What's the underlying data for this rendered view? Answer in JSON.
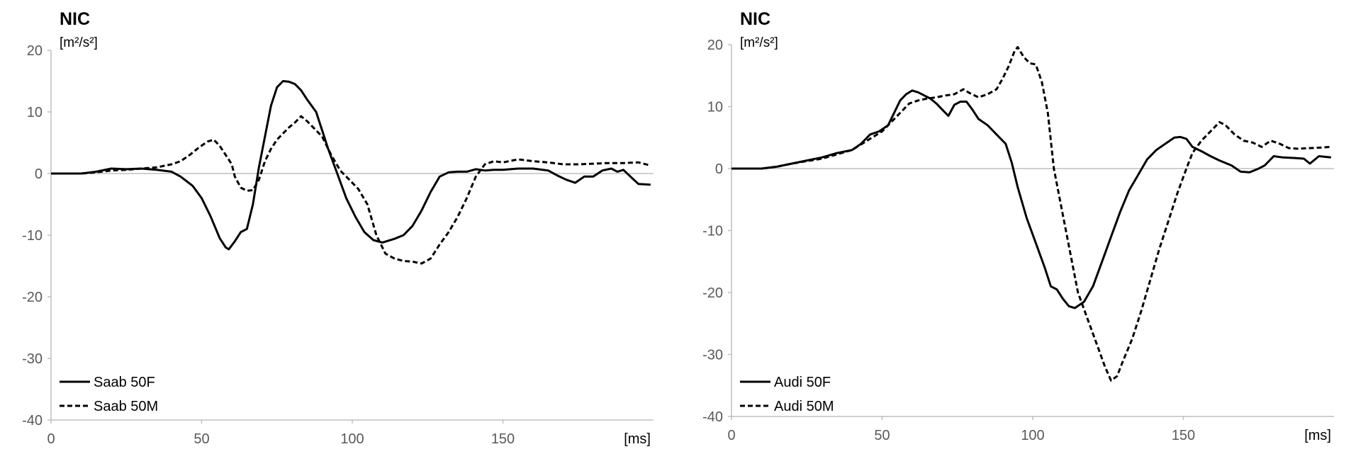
{
  "chart_data": [
    {
      "type": "line",
      "title": "NIC",
      "ylabel": "[m²/s²]",
      "xlabel": "[ms]",
      "xlim": [
        0,
        200
      ],
      "ylim": [
        -40,
        20
      ],
      "xticks": [
        0,
        50,
        100,
        150
      ],
      "yticks": [
        -40,
        -30,
        -20,
        -10,
        0,
        10,
        20
      ],
      "grid": false,
      "legend_position": "bottom-left",
      "series": [
        {
          "name": "Saab 50F",
          "dash": "solid",
          "color": "#000000",
          "points": [
            [
              0,
              0
            ],
            [
              10,
              0
            ],
            [
              15,
              0.3
            ],
            [
              20,
              0.8
            ],
            [
              25,
              0.7
            ],
            [
              30,
              0.8
            ],
            [
              35,
              0.6
            ],
            [
              40,
              0.3
            ],
            [
              43,
              -0.5
            ],
            [
              47,
              -2
            ],
            [
              50,
              -4
            ],
            [
              53,
              -7
            ],
            [
              56,
              -10.5
            ],
            [
              58,
              -12
            ],
            [
              59,
              -12.3
            ],
            [
              61,
              -11
            ],
            [
              63,
              -9.5
            ],
            [
              65,
              -9
            ],
            [
              67,
              -5
            ],
            [
              69,
              1
            ],
            [
              71,
              6
            ],
            [
              73,
              11
            ],
            [
              75,
              14
            ],
            [
              77,
              15
            ],
            [
              79,
              14.9
            ],
            [
              81,
              14.5
            ],
            [
              83,
              13.5
            ],
            [
              85,
              12
            ],
            [
              88,
              10
            ],
            [
              90,
              7
            ],
            [
              92,
              4
            ],
            [
              95,
              0
            ],
            [
              98,
              -4
            ],
            [
              101,
              -7
            ],
            [
              104,
              -9.5
            ],
            [
              107,
              -10.8
            ],
            [
              110,
              -11.2
            ],
            [
              114,
              -10.6
            ],
            [
              117,
              -10
            ],
            [
              120,
              -8.5
            ],
            [
              123,
              -6
            ],
            [
              126,
              -3
            ],
            [
              129,
              -0.5
            ],
            [
              132,
              0.2
            ],
            [
              135,
              0.3
            ],
            [
              138,
              0.3
            ],
            [
              141,
              0.7
            ],
            [
              144,
              0.5
            ],
            [
              147,
              0.6
            ],
            [
              150,
              0.6
            ],
            [
              155,
              0.8
            ],
            [
              160,
              0.8
            ],
            [
              165,
              0.5
            ],
            [
              168,
              -0.3
            ],
            [
              171,
              -1
            ],
            [
              174,
              -1.5
            ],
            [
              177,
              -0.5
            ],
            [
              180,
              -0.5
            ],
            [
              183,
              0.5
            ],
            [
              186,
              0.8
            ],
            [
              188,
              0.3
            ],
            [
              190,
              0.6
            ],
            [
              193,
              -0.8
            ],
            [
              195,
              -1.7
            ],
            [
              199,
              -1.8
            ]
          ]
        },
        {
          "name": "Saab 50M",
          "dash": "dashed",
          "color": "#000000",
          "points": [
            [
              0,
              0
            ],
            [
              10,
              0
            ],
            [
              15,
              0.2
            ],
            [
              20,
              0.5
            ],
            [
              25,
              0.6
            ],
            [
              30,
              0.8
            ],
            [
              35,
              1
            ],
            [
              40,
              1.5
            ],
            [
              43,
              2
            ],
            [
              46,
              3
            ],
            [
              49,
              4.2
            ],
            [
              52,
              5.2
            ],
            [
              54,
              5.5
            ],
            [
              56,
              4.5
            ],
            [
              58,
              3
            ],
            [
              60,
              1.5
            ],
            [
              61,
              -0.5
            ],
            [
              63,
              -2.3
            ],
            [
              65,
              -2.8
            ],
            [
              67,
              -2.7
            ],
            [
              69,
              -1
            ],
            [
              71,
              2
            ],
            [
              73,
              4
            ],
            [
              75,
              5.5
            ],
            [
              77,
              6.5
            ],
            [
              79,
              7.5
            ],
            [
              81,
              8.3
            ],
            [
              83,
              9.3
            ],
            [
              85,
              8.5
            ],
            [
              87,
              7.5
            ],
            [
              90,
              6
            ],
            [
              93,
              3
            ],
            [
              96,
              0.5
            ],
            [
              99,
              -1
            ],
            [
              102,
              -2.5
            ],
            [
              105,
              -5
            ],
            [
              108,
              -10
            ],
            [
              111,
              -13
            ],
            [
              114,
              -13.8
            ],
            [
              117,
              -14.2
            ],
            [
              120,
              -14.3
            ],
            [
              123,
              -14.6
            ],
            [
              126,
              -13.8
            ],
            [
              129,
              -11.5
            ],
            [
              132,
              -9.5
            ],
            [
              135,
              -7
            ],
            [
              138,
              -4
            ],
            [
              141,
              -0.5
            ],
            [
              144,
              1.5
            ],
            [
              147,
              2
            ],
            [
              150,
              1.8
            ],
            [
              155,
              2.3
            ],
            [
              160,
              2
            ],
            [
              165,
              1.8
            ],
            [
              170,
              1.5
            ],
            [
              175,
              1.5
            ],
            [
              180,
              1.6
            ],
            [
              185,
              1.7
            ],
            [
              190,
              1.7
            ],
            [
              195,
              1.8
            ],
            [
              199,
              1.3
            ]
          ]
        }
      ]
    },
    {
      "type": "line",
      "title": "NIC",
      "ylabel": "[m²/s²]",
      "xlabel": "[ms]",
      "xlim": [
        0,
        200
      ],
      "ylim": [
        -40,
        20
      ],
      "xticks": [
        0,
        50,
        100,
        150
      ],
      "yticks": [
        -40,
        -30,
        -20,
        -10,
        0,
        10,
        20
      ],
      "grid": false,
      "legend_position": "bottom-left",
      "series": [
        {
          "name": "Audi 50F",
          "dash": "solid",
          "color": "#000000",
          "points": [
            [
              0,
              0
            ],
            [
              10,
              0
            ],
            [
              15,
              0.3
            ],
            [
              20,
              0.8
            ],
            [
              25,
              1.3
            ],
            [
              30,
              1.8
            ],
            [
              35,
              2.5
            ],
            [
              40,
              3
            ],
            [
              43,
              4
            ],
            [
              46,
              5.5
            ],
            [
              49,
              6
            ],
            [
              52,
              7
            ],
            [
              54,
              9
            ],
            [
              56,
              11
            ],
            [
              58,
              12
            ],
            [
              60,
              12.6
            ],
            [
              62,
              12.3
            ],
            [
              64,
              11.8
            ],
            [
              66,
              11.3
            ],
            [
              68,
              10.5
            ],
            [
              70,
              9.5
            ],
            [
              72,
              8.5
            ],
            [
              74,
              10.3
            ],
            [
              76,
              10.8
            ],
            [
              78,
              10.8
            ],
            [
              80,
              9.5
            ],
            [
              82,
              8
            ],
            [
              85,
              7
            ],
            [
              88,
              5.5
            ],
            [
              91,
              4
            ],
            [
              93,
              1
            ],
            [
              95,
              -3
            ],
            [
              98,
              -8
            ],
            [
              101,
              -12
            ],
            [
              104,
              -16
            ],
            [
              106,
              -19
            ],
            [
              108,
              -19.5
            ],
            [
              110,
              -21
            ],
            [
              112,
              -22.2
            ],
            [
              114,
              -22.5
            ],
            [
              117,
              -21.5
            ],
            [
              120,
              -19
            ],
            [
              123,
              -15
            ],
            [
              126,
              -11
            ],
            [
              129,
              -7
            ],
            [
              132,
              -3.5
            ],
            [
              135,
              -1
            ],
            [
              138,
              1.5
            ],
            [
              141,
              3
            ],
            [
              144,
              4
            ],
            [
              147,
              5
            ],
            [
              149,
              5.1
            ],
            [
              151,
              4.8
            ],
            [
              153,
              3.5
            ],
            [
              156,
              2.8
            ],
            [
              159,
              2
            ],
            [
              162,
              1.3
            ],
            [
              166,
              0.5
            ],
            [
              169,
              -0.5
            ],
            [
              172,
              -0.6
            ],
            [
              175,
              0
            ],
            [
              177,
              0.5
            ],
            [
              180,
              2
            ],
            [
              183,
              1.8
            ],
            [
              187,
              1.7
            ],
            [
              190,
              1.6
            ],
            [
              192,
              0.8
            ],
            [
              195,
              2
            ],
            [
              199,
              1.8
            ]
          ]
        },
        {
          "name": "Audi 50M",
          "dash": "dashed",
          "color": "#000000",
          "points": [
            [
              0,
              0
            ],
            [
              10,
              0
            ],
            [
              15,
              0.3
            ],
            [
              20,
              0.8
            ],
            [
              25,
              1.2
            ],
            [
              30,
              1.6
            ],
            [
              35,
              2.3
            ],
            [
              40,
              3
            ],
            [
              45,
              4.5
            ],
            [
              50,
              6
            ],
            [
              53,
              7.5
            ],
            [
              56,
              9
            ],
            [
              59,
              10.5
            ],
            [
              62,
              11
            ],
            [
              65,
              11.3
            ],
            [
              68,
              11.5
            ],
            [
              71,
              11.8
            ],
            [
              74,
              12
            ],
            [
              77,
              12.8
            ],
            [
              79,
              12.2
            ],
            [
              82,
              11.5
            ],
            [
              85,
              12
            ],
            [
              88,
              12.8
            ],
            [
              90,
              14.5
            ],
            [
              92,
              16.5
            ],
            [
              94,
              19
            ],
            [
              95,
              19.6
            ],
            [
              97,
              18
            ],
            [
              99,
              17
            ],
            [
              101,
              16.8
            ],
            [
              103,
              14
            ],
            [
              105,
              9
            ],
            [
              107,
              0
            ],
            [
              109,
              -5
            ],
            [
              111,
              -10
            ],
            [
              113,
              -15
            ],
            [
              115,
              -20
            ],
            [
              118,
              -24
            ],
            [
              121,
              -28
            ],
            [
              124,
              -32
            ],
            [
              126,
              -34.2
            ],
            [
              128,
              -33.5
            ],
            [
              130,
              -31
            ],
            [
              133,
              -27.5
            ],
            [
              136,
              -23
            ],
            [
              139,
              -18
            ],
            [
              142,
              -13
            ],
            [
              145,
              -8.5
            ],
            [
              148,
              -4
            ],
            [
              151,
              0
            ],
            [
              153,
              2.5
            ],
            [
              156,
              4.5
            ],
            [
              159,
              6
            ],
            [
              162,
              7.5
            ],
            [
              164,
              7
            ],
            [
              167,
              5.5
            ],
            [
              170,
              4.5
            ],
            [
              173,
              4.2
            ],
            [
              176,
              3.5
            ],
            [
              179,
              4.5
            ],
            [
              182,
              4
            ],
            [
              185,
              3.3
            ],
            [
              188,
              3.2
            ],
            [
              192,
              3.3
            ],
            [
              196,
              3.4
            ],
            [
              199,
              3.5
            ]
          ]
        }
      ]
    }
  ]
}
